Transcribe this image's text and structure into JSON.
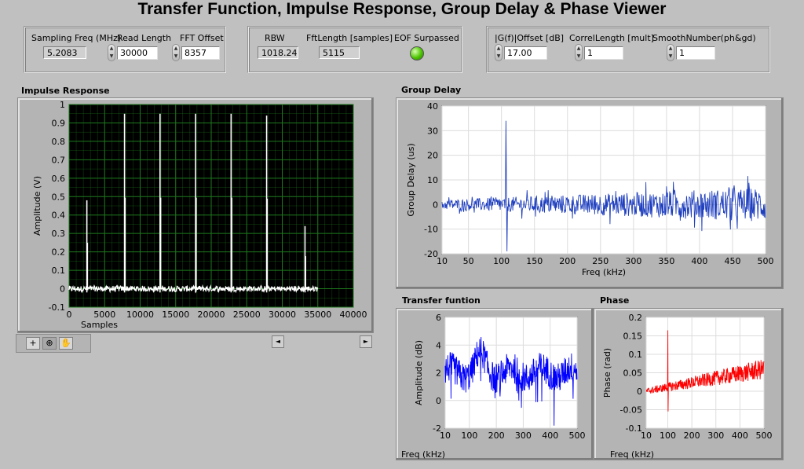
{
  "title": "Transfer Function, Impulse Response, Group Delay & Phase Viewer",
  "params1": {
    "sampling_freq_label": "Sampling Freq (MHz)",
    "sampling_freq": "5.2083",
    "read_length_label": "Read Length",
    "read_length": "30000",
    "fft_offset_label": "FFT Offset",
    "fft_offset": "8357"
  },
  "params2": {
    "rbw_label": "RBW",
    "rbw": "1018.24",
    "fft_length_label": "FftLength [samples]",
    "fft_length": "5115",
    "eof_label": "EOF Surpassed",
    "eof_color": "#4cc400"
  },
  "params3": {
    "g_offset_label": "|G(f)|Offset [dB]",
    "g_offset": "17.00",
    "correl_length_label": "CorrelLength [mult]",
    "correl_length": "1",
    "smooth_number_label": "SmoothNumber(ph&gd)",
    "smooth_number": "1"
  },
  "impulse": {
    "title": "Impulse Response",
    "xlabel": "Samples",
    "ylabel": "Amplitude (V)",
    "xticks": [
      "0",
      "5000",
      "10000",
      "15000",
      "20000",
      "25000",
      "30000",
      "35000",
      "40000"
    ],
    "yticks": [
      "-0.1",
      "0",
      "0.1",
      "0.2",
      "0.3",
      "0.4",
      "0.5",
      "0.6",
      "0.7",
      "0.8",
      "0.9",
      "1"
    ],
    "toolbar": [
      "crosshair-icon",
      "zoom-icon",
      "pan-icon"
    ],
    "scroll_left": "◄",
    "scroll_right": "►"
  },
  "group_delay": {
    "title": "Group Delay",
    "xlabel": "Freq (kHz)",
    "ylabel": "Group Delay (us)",
    "xticks": [
      "10",
      "50",
      "100",
      "150",
      "200",
      "250",
      "300",
      "350",
      "400",
      "450",
      "500"
    ],
    "yticks": [
      "-20",
      "-10",
      "0",
      "10",
      "20",
      "30",
      "40"
    ]
  },
  "transfer": {
    "title": "Transfer funtion",
    "xlabel": "Freq (kHz)",
    "ylabel": "Amplitude (dB)",
    "xticks": [
      "10",
      "100",
      "200",
      "300",
      "400",
      "500"
    ],
    "yticks": [
      "-2",
      "0",
      "2",
      "4",
      "6"
    ]
  },
  "phase": {
    "title": "Phase",
    "xlabel": "Freq (kHz)",
    "ylabel": "Phase (rad)",
    "xticks": [
      "10",
      "100",
      "200",
      "300",
      "400",
      "500"
    ],
    "yticks": [
      "-0.1",
      "-0.05",
      "0",
      "0.05",
      "0.1",
      "0.15",
      "0.2"
    ]
  },
  "chart_data": [
    {
      "type": "line",
      "title": "Impulse Response",
      "xlabel": "Samples",
      "ylabel": "Amplitude (V)",
      "xlim": [
        0,
        40000
      ],
      "ylim": [
        -0.1,
        1
      ],
      "grid": true,
      "color": "#ffffff",
      "spikes": [
        {
          "x": 2500,
          "y": 0.48
        },
        {
          "x": 7800,
          "y": 0.95
        },
        {
          "x": 12800,
          "y": 0.95
        },
        {
          "x": 17800,
          "y": 0.95
        },
        {
          "x": 22800,
          "y": 0.95
        },
        {
          "x": 27800,
          "y": 0.94
        },
        {
          "x": 33200,
          "y": 0.34
        }
      ],
      "noise_range": [
        0,
        35000
      ],
      "noise_level": 0.0
    },
    {
      "type": "line",
      "title": "Group Delay",
      "xlabel": "Freq (kHz)",
      "ylabel": "Group Delay (us)",
      "xlim": [
        10,
        500
      ],
      "ylim": [
        -20,
        40
      ],
      "grid": true,
      "color": "#1f3fbf",
      "spike": {
        "x": 107,
        "y": 34,
        "ymin": -19
      },
      "noise_band": [
        -10,
        10
      ]
    },
    {
      "type": "line",
      "title": "Transfer funtion",
      "xlabel": "Freq (kHz)",
      "ylabel": "Amplitude (dB)",
      "xlim": [
        10,
        500
      ],
      "ylim": [
        -2,
        6
      ],
      "grid": true,
      "color": "#0000ff",
      "baseline": 2.0,
      "peak": {
        "x": 140,
        "y": 5.5
      }
    },
    {
      "type": "line",
      "title": "Phase",
      "xlabel": "Freq (kHz)",
      "ylabel": "Phase (rad)",
      "xlim": [
        10,
        500
      ],
      "ylim": [
        -0.1,
        0.2
      ],
      "grid": true,
      "color": "#ff0000",
      "spike": {
        "x": 100,
        "y": 0.165,
        "ymin": -0.055
      },
      "trend": [
        [
          10,
          0.0
        ],
        [
          500,
          0.06
        ]
      ]
    }
  ]
}
